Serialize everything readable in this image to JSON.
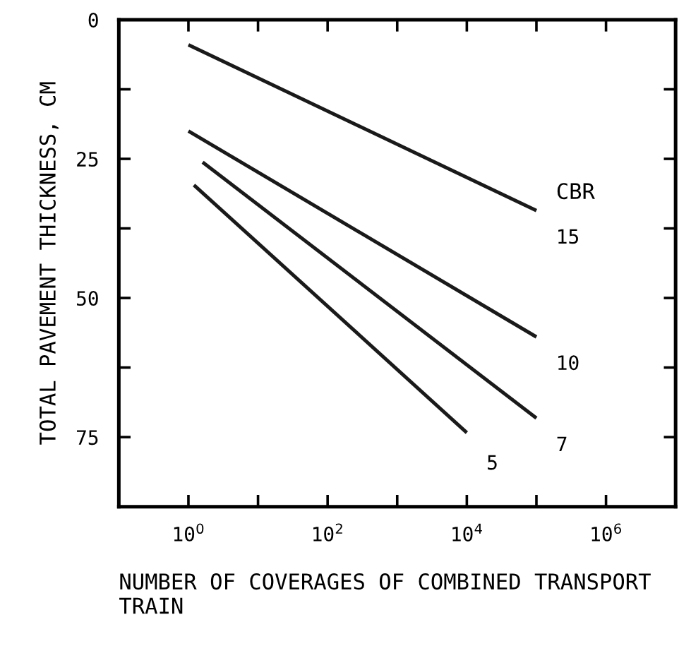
{
  "chart_data": {
    "type": "line",
    "xlabel": "NUMBER OF COVERAGES OF COMBINED TRANSPORT TRAIN",
    "ylabel": "TOTAL PAVEMENT THICKNESS, CM",
    "legend_title": "CBR",
    "log": "x",
    "xlim": [
      0.1,
      10000000
    ],
    "ylim": [
      87.5,
      0
    ],
    "xticks": [
      {
        "value": 1,
        "label": "10$^{0}$"
      },
      {
        "value": 10,
        "label": null
      },
      {
        "value": 100,
        "label": "10$^{2}$"
      },
      {
        "value": 1000,
        "label": null
      },
      {
        "value": 10000,
        "label": "10$^{4}$"
      },
      {
        "value": 100000,
        "label": null
      },
      {
        "value": 1000000,
        "label": "10$^{6}$"
      }
    ],
    "yticks": [
      0,
      {
        "value": 12.5,
        "label": null
      },
      25,
      {
        "value": 37.5,
        "label": null
      },
      50,
      {
        "value": 62.5,
        "label": null
      },
      75
    ],
    "grid": false,
    "legend": false,
    "series": [
      {
        "name": "15",
        "color": "#1a1a1a",
        "x": [
          1,
          100000
        ],
        "values": [
          4.5,
          34.3
        ]
      },
      {
        "name": "10",
        "color": "#1a1a1a",
        "x": [
          1,
          100000
        ],
        "values": [
          20,
          57
        ]
      },
      {
        "name": "7",
        "color": "#1a1a1a",
        "x": [
          1.6,
          100000
        ],
        "values": [
          25.6,
          71.6
        ]
      },
      {
        "name": "5",
        "color": "#1a1a1a",
        "x": [
          1.2,
          10000
        ],
        "values": [
          29.7,
          74.2
        ]
      }
    ]
  }
}
